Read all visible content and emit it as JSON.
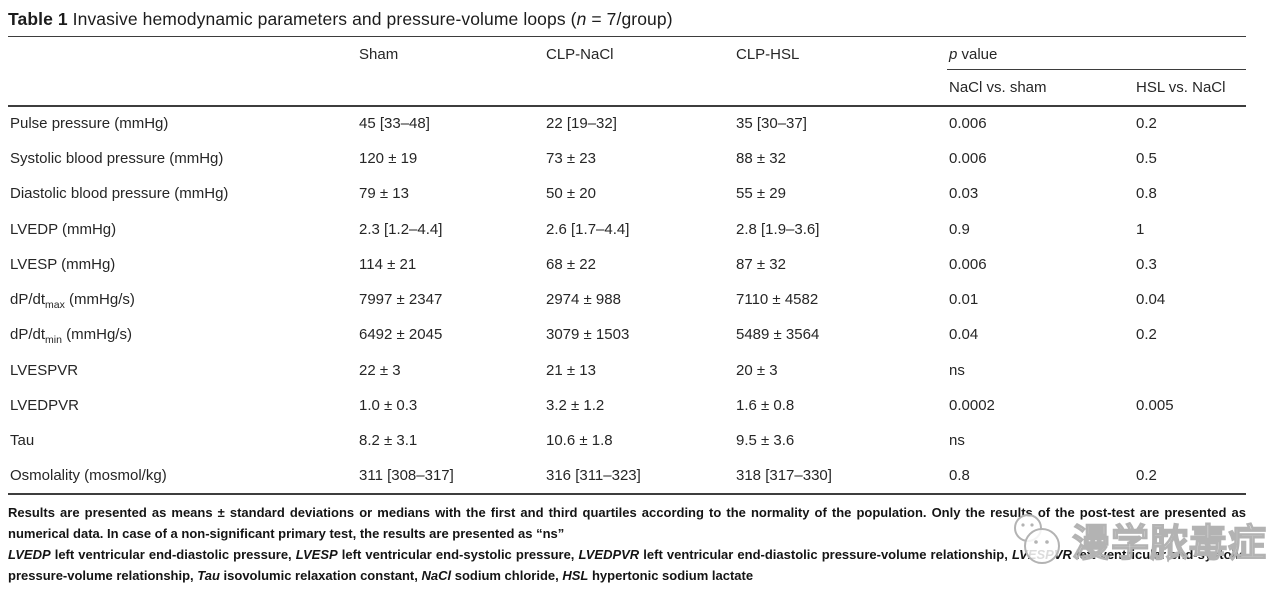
{
  "title": {
    "label": "Table 1",
    "text": " Invasive hemodynamic parameters and pressure-volume loops (",
    "n": "n",
    "tail": " = 7/group)"
  },
  "header": {
    "groups": [
      "Sham",
      "CLP-NaCl",
      "CLP-HSL"
    ],
    "p_italic": "p",
    "p_rest": " value",
    "p_sub": [
      "NaCl vs. sham",
      "HSL vs. NaCl"
    ]
  },
  "rows": [
    {
      "param": "Pulse pressure (mmHg)",
      "param_sub": "",
      "param_post": "",
      "values": [
        "45 [33–48]",
        "22 [19–32]",
        "35 [30–37]",
        "0.006",
        "0.2"
      ]
    },
    {
      "param": "Systolic blood pressure (mmHg)",
      "param_sub": "",
      "param_post": "",
      "values": [
        "120 ± 19",
        "73 ± 23",
        "88 ± 32",
        "0.006",
        "0.5"
      ]
    },
    {
      "param": "Diastolic blood pressure (mmHg)",
      "param_sub": "",
      "param_post": "",
      "values": [
        "79 ± 13",
        "50 ± 20",
        "55 ± 29",
        "0.03",
        "0.8"
      ]
    },
    {
      "param": "LVEDP (mmHg)",
      "param_sub": "",
      "param_post": "",
      "values": [
        "2.3 [1.2–4.4]",
        "2.6 [1.7–4.4]",
        "2.8 [1.9–3.6]",
        "0.9",
        "1"
      ]
    },
    {
      "param": "LVESP (mmHg)",
      "param_sub": "",
      "param_post": "",
      "values": [
        "114 ± 21",
        "68 ± 22",
        "87 ± 32",
        "0.006",
        "0.3"
      ]
    },
    {
      "param": "dP/dt",
      "param_sub": "max",
      "param_post": " (mmHg/s)",
      "values": [
        "7997 ± 2347",
        "2974 ± 988",
        "7110 ± 4582",
        "0.01",
        "0.04"
      ]
    },
    {
      "param": "dP/dt",
      "param_sub": "min",
      "param_post": " (mmHg/s)",
      "values": [
        "6492 ± 2045",
        "3079 ± 1503",
        "5489 ± 3564",
        "0.04",
        "0.2"
      ]
    },
    {
      "param": "LVESPVR",
      "param_sub": "",
      "param_post": "",
      "values": [
        "22 ± 3",
        "21 ± 13",
        "20 ± 3",
        "ns",
        ""
      ]
    },
    {
      "param": "LVEDPVR",
      "param_sub": "",
      "param_post": "",
      "values": [
        "1.0 ± 0.3",
        "3.2 ± 1.2",
        "1.6 ± 0.8",
        "0.0002",
        "0.005"
      ]
    },
    {
      "param": "Tau",
      "param_sub": "",
      "param_post": "",
      "values": [
        "8.2 ± 3.1",
        "10.6 ± 1.8",
        "9.5 ± 3.6",
        "ns",
        ""
      ]
    },
    {
      "param": "Osmolality (mosmol/kg)",
      "param_sub": "",
      "param_post": "",
      "values": [
        "311 [308–317]",
        "316 [311–323]",
        "318 [317–330]",
        "0.8",
        "0.2"
      ]
    }
  ],
  "footnotes": {
    "para1": "Results are presented as means ± standard deviations or medians with the first and third quartiles according to the normality of the population. Only the results of the post-test are presented as numerical data. In case of a non-significant primary test, the results are presented as “ns”",
    "para2_segments": [
      {
        "i": "LVEDP"
      },
      {
        "t": " left ventricular end-diastolic pressure, "
      },
      {
        "i": "LVESP"
      },
      {
        "t": " left ventricular end-systolic pressure, "
      },
      {
        "i": "LVEDPVR"
      },
      {
        "t": " left ventricular end-diastolic pressure-volume relationship, "
      },
      {
        "i": "LVESPVR"
      },
      {
        "t": " left ventricular end-systolic pressure-volume relationship, "
      },
      {
        "i": "Tau"
      },
      {
        "t": " isovolumic relaxation constant, "
      },
      {
        "i": "NaCl"
      },
      {
        "t": " sodium chloride, "
      },
      {
        "i": "HSL"
      },
      {
        "t": " hypertonic sodium lactate"
      }
    ]
  },
  "watermark": {
    "text": "漫学脓毒症",
    "icon": "wechat-icon",
    "color": "#b3b3b3"
  },
  "colors": {
    "rule": "#3d3d3d",
    "text": "#222222",
    "watermark": "#b3b3b3"
  }
}
